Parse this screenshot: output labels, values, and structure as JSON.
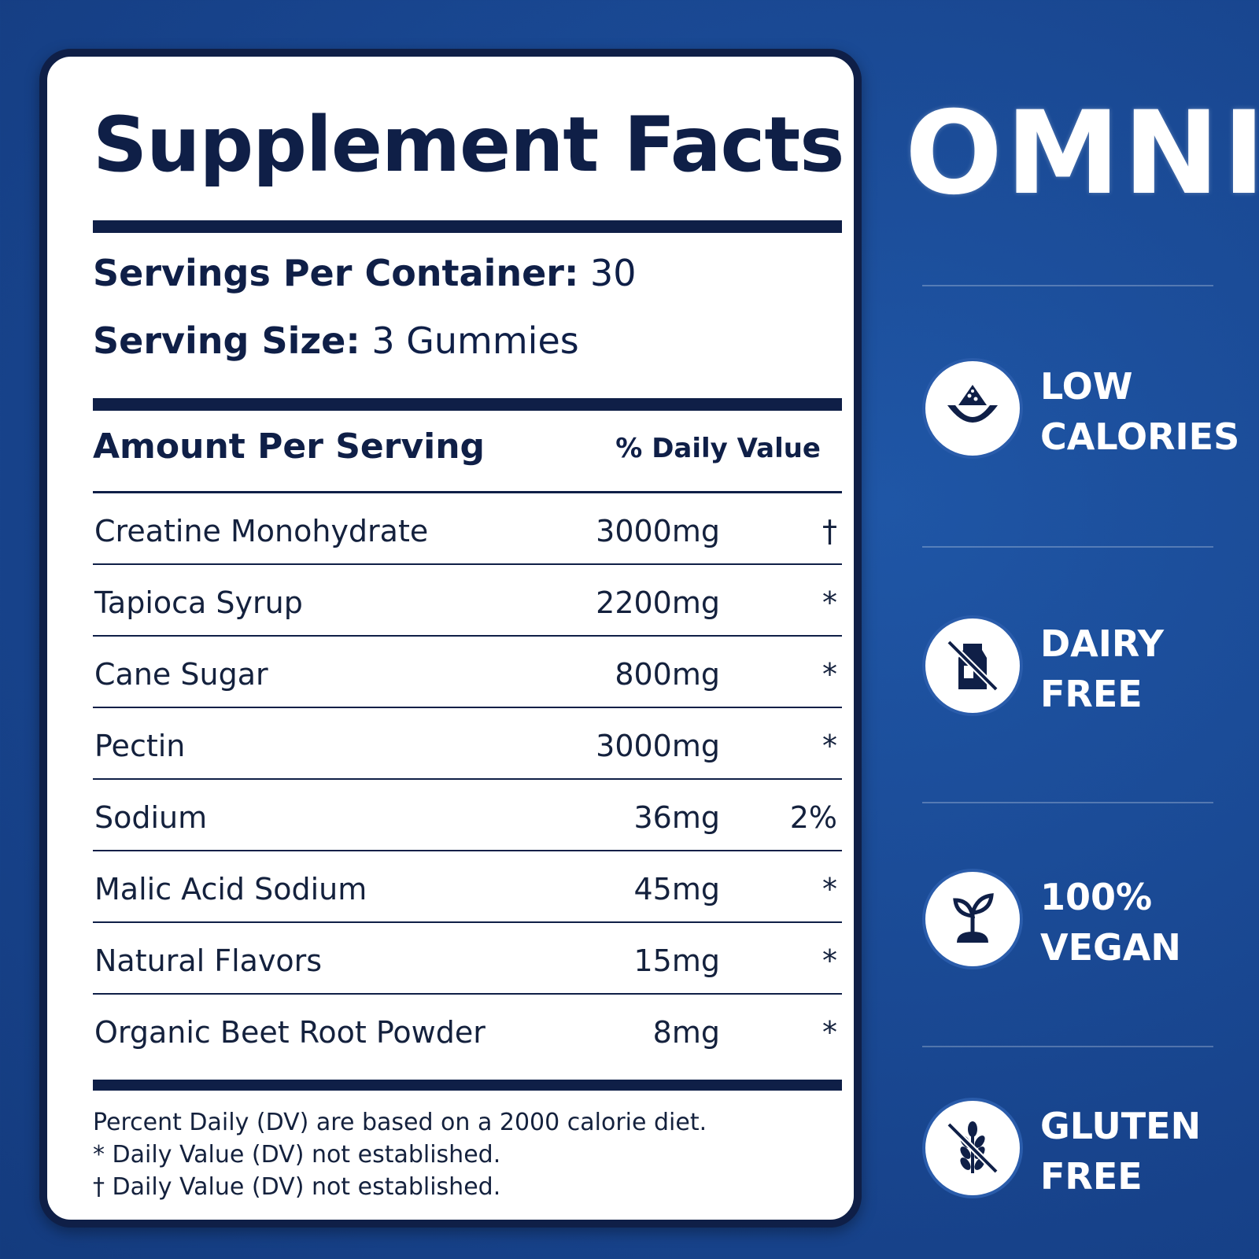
{
  "panel": {
    "title": "Supplement Facts",
    "servings_per_container_label": "Servings Per Container:",
    "servings_per_container_value": " 30",
    "serving_size_label": "Serving Size:",
    "serving_size_value": " 3 Gummies",
    "amount_header": "Amount Per Serving",
    "dv_header": "% Daily Value",
    "rows": [
      {
        "name": "Creatine Monohydrate",
        "amount": "3000mg",
        "dv": "†"
      },
      {
        "name": "Tapioca Syrup",
        "amount": "2200mg",
        "dv": "*"
      },
      {
        "name": "Cane Sugar",
        "amount": "800mg",
        "dv": "*"
      },
      {
        "name": "Pectin",
        "amount": "3000mg",
        "dv": "*"
      },
      {
        "name": "Sodium",
        "amount": "36mg",
        "dv": "2%"
      },
      {
        "name": "Malic Acid Sodium",
        "amount": "45mg",
        "dv": "*"
      },
      {
        "name": "Natural Flavors",
        "amount": "15mg",
        "dv": "*"
      },
      {
        "name": "Organic Beet Root Powder",
        "amount": "8mg",
        "dv": "*"
      }
    ],
    "footnotes": [
      "Percent Daily (DV) are based on a 2000 calorie diet.",
      "* Daily Value (DV) not established.",
      "† Daily Value (DV) not established."
    ]
  },
  "brand": "OMNI",
  "features": [
    {
      "icon": "watermelon-icon",
      "line1": "LOW",
      "line2": "CALORIES"
    },
    {
      "icon": "no-milk-carton-icon",
      "line1": "DAIRY",
      "line2": "FREE"
    },
    {
      "icon": "plant-sprout-icon",
      "line1": "100%",
      "line2": "VEGAN"
    },
    {
      "icon": "no-wheat-icon",
      "line1": "GLUTEN",
      "line2": "FREE"
    }
  ],
  "colors": {
    "background": "#1a4a94",
    "navy": "#0f1f47",
    "white": "#ffffff"
  }
}
